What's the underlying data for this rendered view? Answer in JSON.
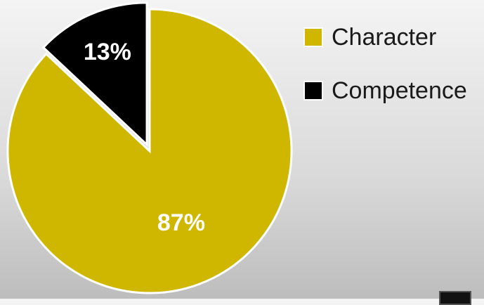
{
  "chart_data": {
    "type": "pie",
    "title": "",
    "series": [
      {
        "name": "Character",
        "value": 87,
        "label": "87%",
        "color": "#cfb700"
      },
      {
        "name": "Competence",
        "value": 13,
        "label": "13%",
        "color": "#000000"
      }
    ],
    "start_angle_deg": 0,
    "direction": "clockwise",
    "exploded_slice": "Competence",
    "legend_position": "right"
  },
  "legend": {
    "items": [
      {
        "label": "Character",
        "color": "#cfb700"
      },
      {
        "label": "Competence",
        "color": "#000000"
      }
    ]
  }
}
